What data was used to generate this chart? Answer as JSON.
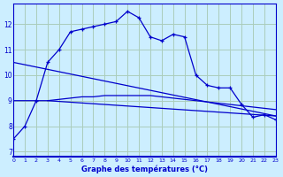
{
  "xlabel": "Graphe des températures (°C)",
  "bg_color": "#cceeff",
  "line_color": "#0000cc",
  "grid_color": "#aaccbb",
  "x_ticks": [
    0,
    1,
    2,
    3,
    4,
    5,
    6,
    7,
    8,
    9,
    10,
    11,
    12,
    13,
    14,
    15,
    16,
    17,
    18,
    19,
    20,
    21,
    22,
    23
  ],
  "y_ticks": [
    7,
    8,
    9,
    10,
    11,
    12
  ],
  "xlim": [
    0,
    23
  ],
  "ylim": [
    6.8,
    12.8
  ],
  "series1_x": [
    0,
    1,
    2,
    3,
    4,
    5,
    6,
    7,
    8,
    9,
    10,
    11,
    12,
    13,
    14,
    15,
    16,
    17,
    18,
    19,
    20,
    21,
    22,
    23
  ],
  "series1_y": [
    7.5,
    8.0,
    9.0,
    10.5,
    11.0,
    11.7,
    11.8,
    11.9,
    12.0,
    12.1,
    12.5,
    12.25,
    11.5,
    11.35,
    11.6,
    11.5,
    10.0,
    9.6,
    9.5,
    9.5,
    8.85,
    8.35,
    8.45,
    8.25
  ],
  "series2_x": [
    0,
    1,
    2,
    3,
    4,
    5,
    6,
    7,
    8,
    9,
    10,
    11,
    12,
    13,
    14,
    15,
    16,
    17,
    18,
    19,
    20,
    21,
    22,
    23
  ],
  "series2_y": [
    9.0,
    9.0,
    9.0,
    9.0,
    9.05,
    9.1,
    9.15,
    9.15,
    9.2,
    9.2,
    9.2,
    9.2,
    9.2,
    9.15,
    9.1,
    9.05,
    9.0,
    8.95,
    8.9,
    8.85,
    8.8,
    8.75,
    8.7,
    8.65
  ],
  "series3_x": [
    0,
    23
  ],
  "series3_y": [
    10.5,
    8.4
  ],
  "series4_x": [
    3,
    23
  ],
  "series4_y": [
    9.0,
    8.4
  ]
}
